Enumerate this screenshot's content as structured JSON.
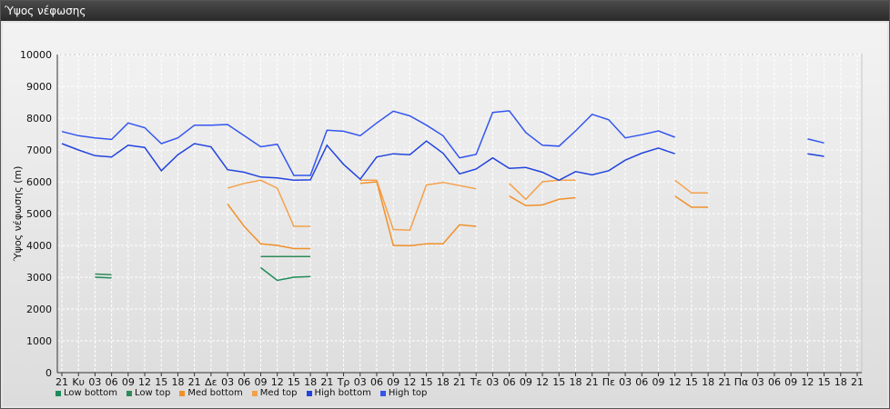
{
  "window": {
    "title": "Ύψος νέφωσης"
  },
  "chart_data": {
    "type": "line",
    "ylabel": "Ύψος νέφωσης (m)",
    "ylim": [
      0,
      10000
    ],
    "yticks": [
      0,
      1000,
      2000,
      3000,
      4000,
      5000,
      6000,
      7000,
      8000,
      9000,
      10000
    ],
    "grid": true,
    "legend_position": "bottom-left",
    "xticks": [
      "21",
      "Κυ",
      "03",
      "06",
      "09",
      "12",
      "15",
      "18",
      "21",
      "Δε",
      "03",
      "06",
      "09",
      "12",
      "15",
      "18",
      "21",
      "Τρ",
      "03",
      "06",
      "09",
      "12",
      "15",
      "18",
      "21",
      "Τε",
      "03",
      "06",
      "09",
      "12",
      "15",
      "18",
      "21",
      "Πε",
      "03",
      "06",
      "09",
      "12",
      "15",
      "18",
      "21",
      "Πα",
      "03",
      "06",
      "09",
      "12",
      "15",
      "18",
      "21"
    ],
    "series": [
      {
        "name": "Low bottom",
        "color": "#1e8c5a",
        "segments": [
          [
            [
              2,
              3000
            ],
            [
              3,
              2980
            ]
          ],
          [
            [
              12,
              3300
            ],
            [
              13,
              2900
            ],
            [
              14,
              3000
            ],
            [
              15,
              3020
            ]
          ]
        ]
      },
      {
        "name": "Low top",
        "color": "#2e8b57",
        "segments": [
          [
            [
              2,
              3100
            ],
            [
              3,
              3080
            ]
          ],
          [
            [
              12,
              3650
            ],
            [
              13,
              3650
            ],
            [
              14,
              3650
            ],
            [
              15,
              3650
            ]
          ]
        ]
      },
      {
        "name": "Med bottom",
        "color": "#f0902a",
        "segments": [
          [
            [
              10,
              5300
            ],
            [
              11,
              4600
            ],
            [
              12,
              4050
            ],
            [
              13,
              4000
            ],
            [
              14,
              3900
            ],
            [
              15,
              3900
            ]
          ],
          [
            [
              18,
              5950
            ],
            [
              19,
              6000
            ],
            [
              20,
              4000
            ],
            [
              21,
              3990
            ],
            [
              22,
              4050
            ],
            [
              23,
              4050
            ],
            [
              24,
              4650
            ],
            [
              25,
              4600
            ]
          ],
          [
            [
              27,
              5550
            ],
            [
              28,
              5250
            ],
            [
              29,
              5270
            ],
            [
              30,
              5450
            ],
            [
              31,
              5500
            ]
          ],
          [
            [
              37,
              5550
            ],
            [
              38,
              5200
            ],
            [
              39,
              5200
            ]
          ]
        ]
      },
      {
        "name": "Med top",
        "color": "#f5a04a",
        "segments": [
          [
            [
              10,
              5800
            ],
            [
              11,
              5950
            ],
            [
              12,
              6050
            ],
            [
              13,
              5800
            ],
            [
              14,
              4600
            ],
            [
              15,
              4600
            ]
          ],
          [
            [
              18,
              6050
            ],
            [
              19,
              6050
            ],
            [
              20,
              4500
            ],
            [
              21,
              4480
            ],
            [
              22,
              5900
            ],
            [
              23,
              5980
            ],
            [
              24,
              5880
            ],
            [
              25,
              5780
            ]
          ],
          [
            [
              27,
              5950
            ],
            [
              28,
              5450
            ],
            [
              29,
              6000
            ],
            [
              30,
              6050
            ],
            [
              31,
              6050
            ]
          ],
          [
            [
              37,
              6050
            ],
            [
              38,
              5650
            ],
            [
              39,
              5650
            ]
          ]
        ]
      },
      {
        "name": "High bottom",
        "color": "#2244dd",
        "segments": [
          [
            [
              0,
              7200
            ],
            [
              1,
              7000
            ],
            [
              2,
              6820
            ],
            [
              3,
              6780
            ],
            [
              4,
              7150
            ],
            [
              5,
              7080
            ],
            [
              6,
              6350
            ],
            [
              7,
              6850
            ],
            [
              8,
              7200
            ],
            [
              9,
              7100
            ],
            [
              10,
              6380
            ],
            [
              11,
              6300
            ],
            [
              12,
              6150
            ],
            [
              13,
              6120
            ],
            [
              14,
              6050
            ],
            [
              15,
              6060
            ],
            [
              16,
              7150
            ],
            [
              17,
              6550
            ],
            [
              18,
              6080
            ],
            [
              19,
              6780
            ],
            [
              20,
              6880
            ],
            [
              21,
              6850
            ],
            [
              22,
              7280
            ],
            [
              23,
              6900
            ],
            [
              24,
              6250
            ],
            [
              25,
              6400
            ],
            [
              26,
              6750
            ],
            [
              27,
              6420
            ],
            [
              28,
              6450
            ],
            [
              29,
              6300
            ],
            [
              30,
              6050
            ],
            [
              31,
              6320
            ],
            [
              32,
              6220
            ],
            [
              33,
              6350
            ],
            [
              34,
              6680
            ],
            [
              35,
              6900
            ],
            [
              36,
              7060
            ],
            [
              37,
              6880
            ]
          ],
          [
            [
              45,
              6880
            ],
            [
              46,
              6800
            ]
          ]
        ]
      },
      {
        "name": "High top",
        "color": "#3355ee",
        "segments": [
          [
            [
              0,
              7580
            ],
            [
              1,
              7450
            ],
            [
              2,
              7380
            ],
            [
              3,
              7330
            ],
            [
              4,
              7850
            ],
            [
              5,
              7700
            ],
            [
              6,
              7200
            ],
            [
              7,
              7380
            ],
            [
              8,
              7780
            ],
            [
              9,
              7780
            ],
            [
              10,
              7800
            ],
            [
              11,
              7450
            ],
            [
              12,
              7100
            ],
            [
              13,
              7180
            ],
            [
              14,
              6200
            ],
            [
              15,
              6200
            ],
            [
              16,
              7620
            ],
            [
              17,
              7590
            ],
            [
              18,
              7450
            ],
            [
              19,
              7850
            ],
            [
              20,
              8220
            ],
            [
              21,
              8070
            ],
            [
              22,
              7780
            ],
            [
              23,
              7450
            ],
            [
              24,
              6750
            ],
            [
              25,
              6860
            ],
            [
              26,
              8180
            ],
            [
              27,
              8230
            ],
            [
              28,
              7550
            ],
            [
              29,
              7150
            ],
            [
              30,
              7120
            ],
            [
              31,
              7600
            ],
            [
              32,
              8120
            ],
            [
              33,
              7950
            ],
            [
              34,
              7380
            ],
            [
              35,
              7480
            ],
            [
              36,
              7600
            ],
            [
              37,
              7400
            ]
          ],
          [
            [
              45,
              7350
            ],
            [
              46,
              7220
            ]
          ]
        ]
      }
    ]
  }
}
